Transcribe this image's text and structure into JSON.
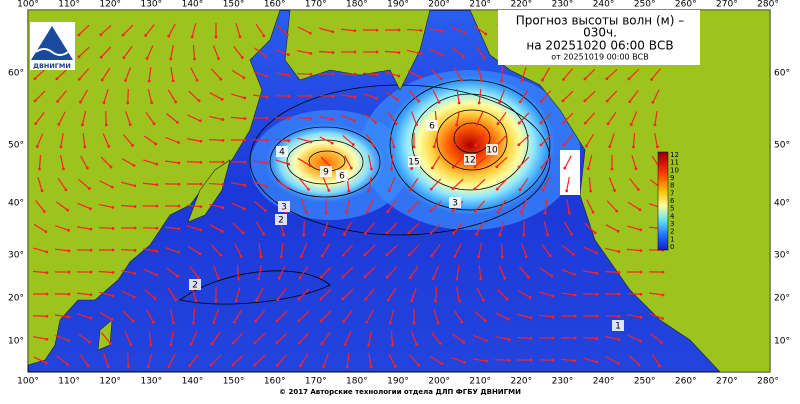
{
  "header": {
    "title": "Прогноз высоты волн (м) –",
    "lead_time": "030ч.",
    "valid": "на 20251020 06:00 ВСВ",
    "issued": "от 20251019 00:00 ВСВ"
  },
  "logo": {
    "text": "ДВНИГМИ"
  },
  "map": {
    "lon_labels": [
      "100°",
      "110°",
      "120°",
      "130°",
      "140°",
      "150°",
      "160°",
      "170°",
      "180°",
      "190°",
      "200°",
      "210°",
      "220°",
      "230°",
      "240°",
      "250°",
      "260°",
      "270°",
      "280°"
    ],
    "lat_labels": [
      "60°",
      "50°",
      "40°",
      "30°",
      "20°",
      "10°"
    ]
  },
  "legend": {
    "labels": [
      "12",
      "11",
      "10",
      "9",
      "8",
      "7",
      "6",
      "5",
      "4",
      "3",
      "2",
      "1",
      "0"
    ]
  },
  "contours": {
    "labels": [
      "9",
      "6",
      "4",
      "3",
      "2",
      "15",
      "12",
      "10",
      "6",
      "3",
      "2",
      "1"
    ]
  },
  "footer": {
    "copyright": "© 2017 Авторские технологии отдела ДЛП ФГБУ ДВНИГМИ"
  }
}
